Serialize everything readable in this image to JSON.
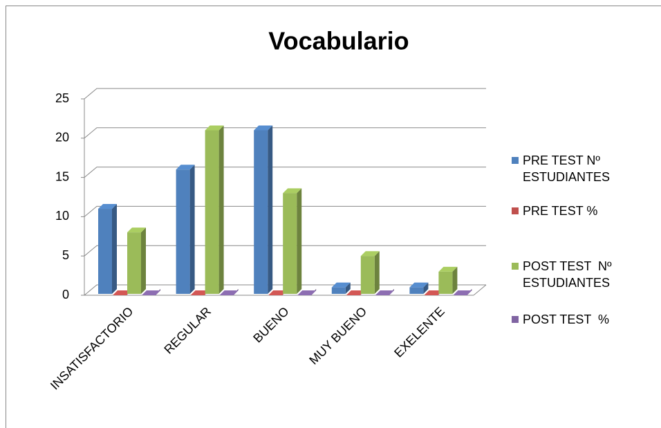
{
  "chart_data": {
    "type": "bar3d",
    "title": "Vocabulario",
    "categories": [
      "INSATISFACTORIO",
      "REGULAR",
      "BUENO",
      "MUY BUENO",
      "EXELENTE"
    ],
    "series": [
      {
        "name": "PRE TEST Nº ESTUDIANTES",
        "color": "#4f81bd",
        "values": [
          11,
          16,
          21,
          1,
          1
        ]
      },
      {
        "name": "PRE TEST %",
        "color": "#c0504d",
        "values": [
          0,
          0,
          0,
          0,
          0
        ]
      },
      {
        "name": "POST TEST  Nº ESTUDIANTES",
        "color": "#9bbb59",
        "values": [
          8,
          21,
          13,
          5,
          3
        ]
      },
      {
        "name": "POST TEST  %",
        "color": "#8064a2",
        "values": [
          0,
          0,
          0,
          0,
          0
        ]
      }
    ],
    "ylim": [
      0,
      25
    ],
    "yticks": [
      0,
      5,
      10,
      15,
      20,
      25
    ],
    "grid": true,
    "legend": "right"
  }
}
